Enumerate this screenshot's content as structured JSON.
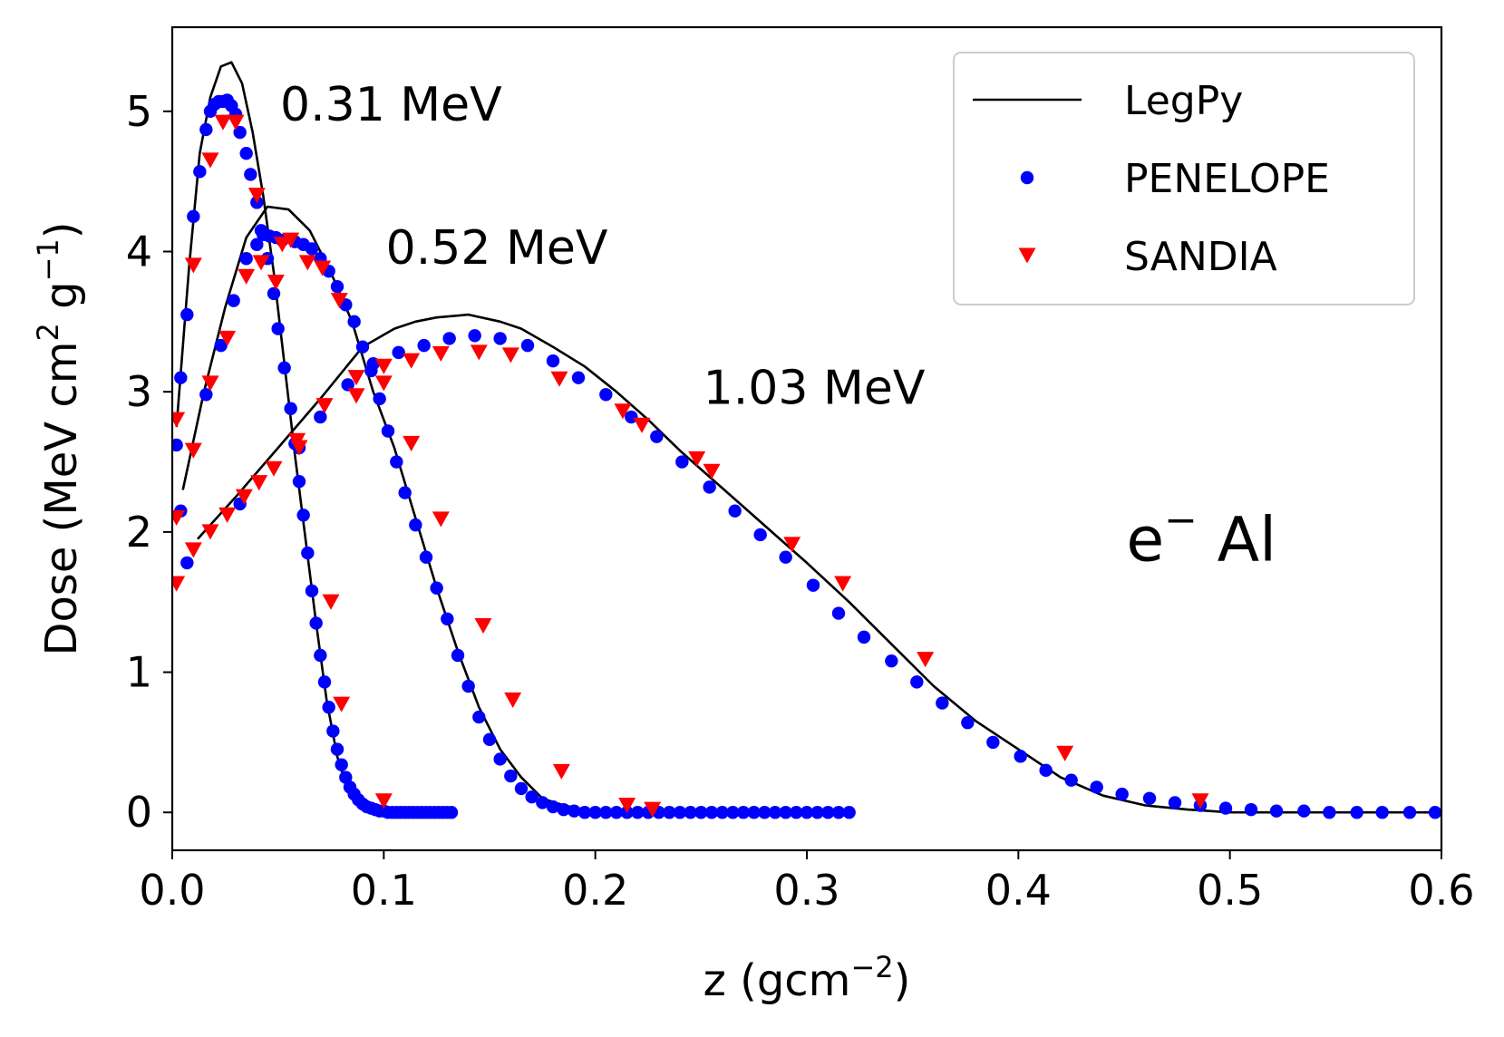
{
  "chart_data": {
    "type": "line",
    "title": "",
    "xlabel": "z (gcm",
    "xlabel_sup": "−2",
    "xlabel_end": ")",
    "ylabel": "Dose (MeV cm",
    "ylabel_sup1": "2",
    "ylabel_mid": " g",
    "ylabel_sup2": "−1",
    "ylabel_end": ")",
    "xlim": [
      0.0,
      0.6
    ],
    "ylim": [
      -0.27,
      5.6
    ],
    "xticks": [
      0.0,
      0.1,
      0.2,
      0.3,
      0.4,
      0.5,
      0.6
    ],
    "xtick_labels": [
      "0.0",
      "0.1",
      "0.2",
      "0.3",
      "0.4",
      "0.5",
      "0.6"
    ],
    "yticks": [
      0,
      1,
      2,
      3,
      4,
      5
    ],
    "ytick_labels": [
      "0",
      "1",
      "2",
      "3",
      "4",
      "5"
    ],
    "grid": false,
    "legend_position": "top-right",
    "annotations": [
      {
        "text": "0.31 MeV",
        "x": 0.051,
        "y": 5.05
      },
      {
        "text": "0.52 MeV",
        "x": 0.101,
        "y": 4.03
      },
      {
        "text": "1.03 MeV",
        "x": 0.251,
        "y": 3.03
      },
      {
        "text": "e",
        "sup": "−",
        "rest": " Al",
        "x": 0.451,
        "y": 1.95
      }
    ],
    "series": [
      {
        "name": "LegPy",
        "style": "line",
        "color": "#000000",
        "energy": "0.31 MeV",
        "x": [
          0.002,
          0.008,
          0.013,
          0.018,
          0.023,
          0.028,
          0.033,
          0.038,
          0.043,
          0.048,
          0.053,
          0.058,
          0.063,
          0.068,
          0.073,
          0.078,
          0.083,
          0.088,
          0.093,
          0.098,
          0.11,
          0.122
        ],
        "y": [
          2.75,
          3.9,
          4.7,
          5.1,
          5.32,
          5.35,
          5.2,
          4.85,
          4.4,
          3.85,
          3.2,
          2.55,
          1.95,
          1.35,
          0.8,
          0.4,
          0.15,
          0.05,
          0.02,
          0.01,
          0.0,
          0.0
        ]
      },
      {
        "name": "LegPy",
        "style": "line",
        "color": "#000000",
        "energy": "0.52 MeV",
        "x": [
          0.005,
          0.015,
          0.025,
          0.035,
          0.045,
          0.055,
          0.065,
          0.075,
          0.085,
          0.095,
          0.105,
          0.115,
          0.125,
          0.135,
          0.145,
          0.155,
          0.165,
          0.175,
          0.185,
          0.195,
          0.205,
          0.225,
          0.26
        ],
        "y": [
          2.3,
          3.0,
          3.6,
          4.1,
          4.32,
          4.3,
          4.15,
          3.85,
          3.5,
          3.0,
          2.6,
          2.1,
          1.6,
          1.15,
          0.75,
          0.45,
          0.25,
          0.1,
          0.05,
          0.02,
          0.0,
          0.0,
          0.0
        ]
      },
      {
        "name": "LegPy",
        "style": "line",
        "color": "#000000",
        "energy": "1.03 MeV",
        "x": [
          0.012,
          0.03,
          0.05,
          0.07,
          0.09,
          0.105,
          0.115,
          0.125,
          0.14,
          0.155,
          0.165,
          0.18,
          0.195,
          0.21,
          0.225,
          0.24,
          0.255,
          0.27,
          0.285,
          0.3,
          0.32,
          0.34,
          0.36,
          0.38,
          0.4,
          0.42,
          0.44,
          0.46,
          0.48,
          0.5,
          0.53,
          0.56,
          0.6
        ],
        "y": [
          1.95,
          2.25,
          2.6,
          2.95,
          3.32,
          3.45,
          3.5,
          3.53,
          3.55,
          3.5,
          3.45,
          3.32,
          3.18,
          3.0,
          2.8,
          2.58,
          2.38,
          2.18,
          1.98,
          1.78,
          1.5,
          1.2,
          0.9,
          0.65,
          0.45,
          0.25,
          0.12,
          0.05,
          0.02,
          0.0,
          0.0,
          0.0,
          0.0
        ]
      },
      {
        "name": "PENELOPE",
        "style": "dot",
        "color": "#0000ff",
        "energy": "0.31 MeV",
        "x": [
          0.002,
          0.004,
          0.007,
          0.01,
          0.013,
          0.016,
          0.018,
          0.02,
          0.022,
          0.024,
          0.026,
          0.028,
          0.03,
          0.032,
          0.035,
          0.037,
          0.04,
          0.042,
          0.045,
          0.048,
          0.05,
          0.053,
          0.056,
          0.058,
          0.06,
          0.062,
          0.064,
          0.066,
          0.068,
          0.07,
          0.072,
          0.074,
          0.076,
          0.078,
          0.08,
          0.082,
          0.084,
          0.086,
          0.088,
          0.09,
          0.092,
          0.094,
          0.096,
          0.098,
          0.1,
          0.102,
          0.104,
          0.106,
          0.108,
          0.11,
          0.112,
          0.114,
          0.116,
          0.118,
          0.12,
          0.122,
          0.124,
          0.126,
          0.128,
          0.13,
          0.132
        ],
        "y": [
          2.62,
          3.1,
          3.55,
          4.25,
          4.57,
          4.87,
          5.0,
          5.05,
          5.07,
          5.07,
          5.08,
          5.04,
          4.98,
          4.85,
          4.7,
          4.55,
          4.35,
          4.15,
          3.95,
          3.7,
          3.45,
          3.17,
          2.88,
          2.63,
          2.36,
          2.12,
          1.85,
          1.58,
          1.35,
          1.12,
          0.93,
          0.75,
          0.58,
          0.45,
          0.34,
          0.25,
          0.18,
          0.13,
          0.09,
          0.06,
          0.04,
          0.03,
          0.02,
          0.01,
          0.01,
          0.0,
          0.0,
          0.0,
          0.0,
          0.0,
          0.0,
          0.0,
          0.0,
          0.0,
          0.0,
          0.0,
          0.0,
          0.0,
          0.0,
          0.0,
          0.0
        ]
      },
      {
        "name": "PENELOPE",
        "style": "dot",
        "color": "#0000ff",
        "energy": "0.52 MeV",
        "x": [
          0.004,
          0.016,
          0.023,
          0.029,
          0.035,
          0.04,
          0.043,
          0.046,
          0.049,
          0.052,
          0.058,
          0.062,
          0.066,
          0.07,
          0.074,
          0.078,
          0.082,
          0.086,
          0.09,
          0.094,
          0.098,
          0.102,
          0.106,
          0.11,
          0.115,
          0.12,
          0.125,
          0.13,
          0.135,
          0.14,
          0.145,
          0.15,
          0.155,
          0.16,
          0.165,
          0.17,
          0.175,
          0.18,
          0.185,
          0.19,
          0.195,
          0.2,
          0.205,
          0.21,
          0.215,
          0.22,
          0.225,
          0.23,
          0.235,
          0.24,
          0.245,
          0.25,
          0.255,
          0.26,
          0.265,
          0.27,
          0.275,
          0.28,
          0.285,
          0.29,
          0.295,
          0.3,
          0.305,
          0.31,
          0.315,
          0.32
        ],
        "y": [
          2.15,
          2.98,
          3.33,
          3.65,
          3.95,
          4.05,
          4.12,
          4.11,
          4.1,
          4.08,
          4.07,
          4.05,
          4.02,
          3.95,
          3.86,
          3.75,
          3.62,
          3.5,
          3.32,
          3.15,
          2.95,
          2.72,
          2.5,
          2.28,
          2.05,
          1.82,
          1.6,
          1.38,
          1.12,
          0.9,
          0.68,
          0.52,
          0.38,
          0.26,
          0.17,
          0.11,
          0.07,
          0.04,
          0.02,
          0.01,
          0.0,
          0.0,
          0.0,
          0.0,
          0.0,
          0.0,
          0.0,
          0.0,
          0.0,
          0.0,
          0.0,
          0.0,
          0.0,
          0.0,
          0.0,
          0.0,
          0.0,
          0.0,
          0.0,
          0.0,
          0.0,
          0.0,
          0.0,
          0.0,
          0.0,
          0.0
        ]
      },
      {
        "name": "PENELOPE",
        "style": "dot",
        "color": "#0000ff",
        "energy": "1.03 MeV",
        "x": [
          0.007,
          0.032,
          0.06,
          0.07,
          0.083,
          0.095,
          0.107,
          0.119,
          0.131,
          0.143,
          0.155,
          0.168,
          0.18,
          0.192,
          0.205,
          0.217,
          0.229,
          0.241,
          0.254,
          0.266,
          0.278,
          0.29,
          0.303,
          0.315,
          0.327,
          0.34,
          0.352,
          0.364,
          0.376,
          0.388,
          0.401,
          0.413,
          0.425,
          0.437,
          0.449,
          0.462,
          0.474,
          0.486,
          0.498,
          0.51,
          0.522,
          0.535,
          0.547,
          0.56,
          0.572,
          0.585,
          0.597
        ],
        "y": [
          1.78,
          2.2,
          2.6,
          2.82,
          3.05,
          3.2,
          3.28,
          3.33,
          3.38,
          3.4,
          3.38,
          3.33,
          3.22,
          3.1,
          2.98,
          2.82,
          2.68,
          2.5,
          2.32,
          2.15,
          1.98,
          1.82,
          1.62,
          1.42,
          1.25,
          1.08,
          0.93,
          0.78,
          0.64,
          0.5,
          0.4,
          0.3,
          0.23,
          0.18,
          0.13,
          0.1,
          0.07,
          0.05,
          0.03,
          0.02,
          0.01,
          0.01,
          0.0,
          0.0,
          0.0,
          0.0,
          0.0
        ]
      },
      {
        "name": "SANDIA",
        "style": "triangle",
        "color": "#ff0000",
        "energy": "0.31 MeV",
        "x": [
          0.002,
          0.01,
          0.018,
          0.024,
          0.03,
          0.04,
          0.052,
          0.06,
          0.075,
          0.08,
          0.1
        ],
        "y": [
          2.8,
          3.9,
          4.65,
          4.92,
          4.92,
          4.4,
          4.05,
          2.6,
          1.5,
          0.77,
          0.08
        ]
      },
      {
        "name": "SANDIA",
        "style": "triangle",
        "color": "#ff0000",
        "energy": "0.52 MeV",
        "x": [
          0.002,
          0.01,
          0.018,
          0.026,
          0.035,
          0.042,
          0.049,
          0.056,
          0.064,
          0.071,
          0.079,
          0.087,
          0.1,
          0.113,
          0.127,
          0.147,
          0.161,
          0.184,
          0.215,
          0.227
        ],
        "y": [
          2.1,
          2.58,
          3.06,
          3.38,
          3.82,
          3.92,
          3.78,
          4.08,
          3.92,
          3.88,
          3.65,
          3.1,
          3.18,
          2.63,
          2.09,
          1.33,
          0.8,
          0.29,
          0.05,
          0.02
        ]
      },
      {
        "name": "SANDIA",
        "style": "triangle",
        "color": "#ff0000",
        "energy": "1.03 MeV",
        "x": [
          0.002,
          0.01,
          0.018,
          0.026,
          0.034,
          0.041,
          0.048,
          0.059,
          0.072,
          0.087,
          0.1,
          0.113,
          0.127,
          0.145,
          0.16,
          0.183,
          0.213,
          0.222,
          0.248,
          0.255,
          0.293,
          0.317,
          0.356,
          0.422,
          0.486
        ],
        "y": [
          1.63,
          1.87,
          2.0,
          2.12,
          2.25,
          2.35,
          2.45,
          2.65,
          2.9,
          2.97,
          3.06,
          3.22,
          3.27,
          3.28,
          3.26,
          3.09,
          2.86,
          2.76,
          2.52,
          2.43,
          1.91,
          1.63,
          1.09,
          0.42,
          0.08
        ]
      }
    ],
    "legend": [
      {
        "label": "LegPy",
        "style": "line",
        "color": "#000000"
      },
      {
        "label": "PENELOPE",
        "style": "dot",
        "color": "#0000ff"
      },
      {
        "label": "SANDIA",
        "style": "triangle",
        "color": "#ff0000"
      }
    ]
  }
}
